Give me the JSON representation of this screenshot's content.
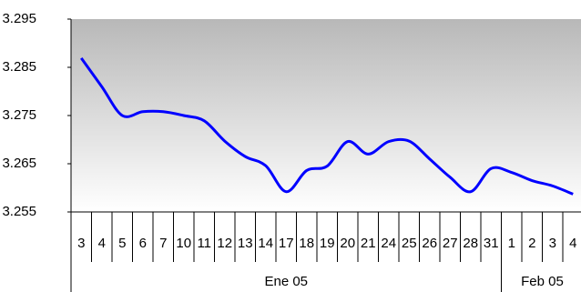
{
  "chart_data": {
    "type": "line",
    "category_groups": [
      {
        "label": "Ene 05",
        "categories": [
          "3",
          "4",
          "5",
          "6",
          "7",
          "10",
          "11",
          "12",
          "13",
          "14",
          "17",
          "18",
          "19",
          "20",
          "21",
          "24",
          "25",
          "26",
          "27",
          "28",
          "31"
        ]
      },
      {
        "label": "Feb 05",
        "categories": [
          "1",
          "2",
          "3",
          "4"
        ]
      }
    ],
    "values": [
      3.2869,
      3.281,
      3.275,
      3.2758,
      3.2758,
      3.275,
      3.2739,
      3.2697,
      3.2665,
      3.2646,
      3.2592,
      3.2636,
      3.2645,
      3.2696,
      3.267,
      3.2696,
      3.2697,
      3.266,
      3.2622,
      3.2592,
      3.264,
      3.2632,
      3.2615,
      3.2604,
      3.2587
    ],
    "color": "#0000ff",
    "ylim": [
      3.255,
      3.295
    ],
    "yticks": [
      3.255,
      3.265,
      3.275,
      3.285,
      3.295
    ],
    "grid": false
  }
}
